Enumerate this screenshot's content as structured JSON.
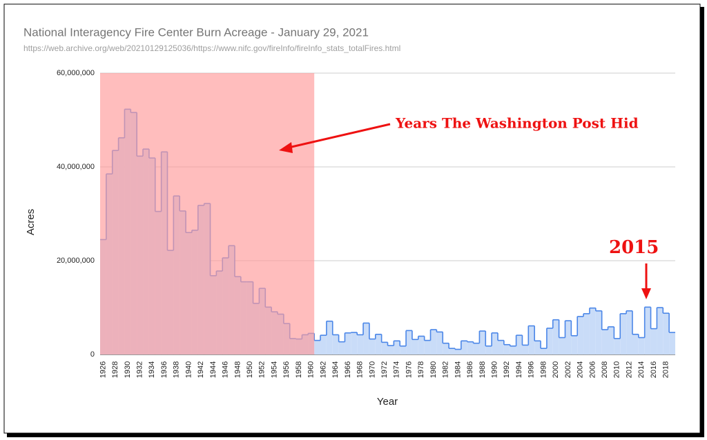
{
  "chart_data": {
    "type": "step-area",
    "title": "National Interagency Fire Center Burn Acreage - January 29, 2021",
    "subtitle": "https://web.archive.org/web/20210129125036/https://www.nifc.gov/fireInfo/fireInfo_stats_totalFires.html",
    "xlabel": "Year",
    "ylabel": "Acres",
    "x": [
      1926,
      1927,
      1928,
      1929,
      1930,
      1931,
      1932,
      1933,
      1934,
      1935,
      1936,
      1937,
      1938,
      1939,
      1940,
      1941,
      1942,
      1943,
      1944,
      1945,
      1946,
      1947,
      1948,
      1949,
      1950,
      1951,
      1952,
      1953,
      1954,
      1955,
      1956,
      1957,
      1958,
      1959,
      1960,
      1961,
      1962,
      1963,
      1964,
      1965,
      1966,
      1967,
      1968,
      1969,
      1970,
      1971,
      1972,
      1973,
      1974,
      1975,
      1976,
      1977,
      1978,
      1979,
      1980,
      1981,
      1982,
      1983,
      1984,
      1985,
      1986,
      1987,
      1988,
      1989,
      1990,
      1991,
      1992,
      1993,
      1994,
      1995,
      1996,
      1997,
      1998,
      1999,
      2000,
      2001,
      2002,
      2003,
      2004,
      2005,
      2006,
      2007,
      2008,
      2009,
      2010,
      2011,
      2012,
      2013,
      2014,
      2015,
      2016,
      2017,
      2018,
      2019
    ],
    "series": [
      {
        "name": "Acres",
        "color": "#4a86e8",
        "fill": "#c9dcf8",
        "values": [
          24500000,
          38500000,
          43500000,
          46200000,
          52300000,
          51600000,
          42300000,
          43800000,
          41900000,
          30500000,
          43200000,
          22200000,
          33800000,
          30600000,
          26000000,
          26500000,
          31800000,
          32200000,
          16800000,
          17800000,
          20600000,
          23200000,
          16600000,
          15500000,
          15500000,
          10900000,
          14100000,
          10100000,
          9100000,
          8600000,
          6600000,
          3400000,
          3300000,
          4200000,
          4500000,
          3000000,
          4100000,
          7100000,
          4200000,
          2700000,
          4600000,
          4700000,
          4200000,
          6700000,
          3300000,
          4300000,
          2600000,
          1900000,
          2900000,
          1800000,
          5100000,
          3200000,
          3900000,
          3000000,
          5300000,
          4800000,
          2400000,
          1300000,
          1100000,
          2900000,
          2700000,
          2400000,
          5000000,
          1800000,
          4600000,
          3000000,
          2100000,
          1800000,
          4100000,
          2000000,
          6100000,
          2900000,
          1300000,
          5600000,
          7400000,
          3600000,
          7200000,
          4000000,
          8100000,
          8700000,
          9900000,
          9300000,
          5300000,
          5900000,
          3400000,
          8700000,
          9300000,
          4300000,
          3600000,
          10100000,
          5500000,
          10000000,
          8800000,
          4700000
        ]
      }
    ],
    "xlim": [
      1926,
      2020
    ],
    "xticks": [
      1926,
      1928,
      1930,
      1932,
      1934,
      1936,
      1938,
      1940,
      1942,
      1944,
      1946,
      1948,
      1950,
      1952,
      1954,
      1956,
      1958,
      1960,
      1962,
      1964,
      1966,
      1968,
      1970,
      1972,
      1974,
      1976,
      1978,
      1980,
      1982,
      1984,
      1986,
      1988,
      1990,
      1992,
      1994,
      1996,
      1998,
      2000,
      2002,
      2004,
      2006,
      2008,
      2010,
      2012,
      2014,
      2016,
      2018
    ],
    "ylim": [
      0,
      60000000
    ],
    "yticks": [
      0,
      {
        "value": 20000000,
        "label": "20,000,000"
      },
      {
        "value": 40000000,
        "label": "40,000,000"
      },
      {
        "value": 60000000,
        "label": "60,000,000"
      }
    ],
    "grid": true,
    "shaded_years": [
      1926,
      1960
    ],
    "shade_color": "#ff9a9a",
    "annotations": [
      {
        "text": "Years The Washington Post Hid"
      },
      {
        "text": "2015"
      }
    ]
  }
}
